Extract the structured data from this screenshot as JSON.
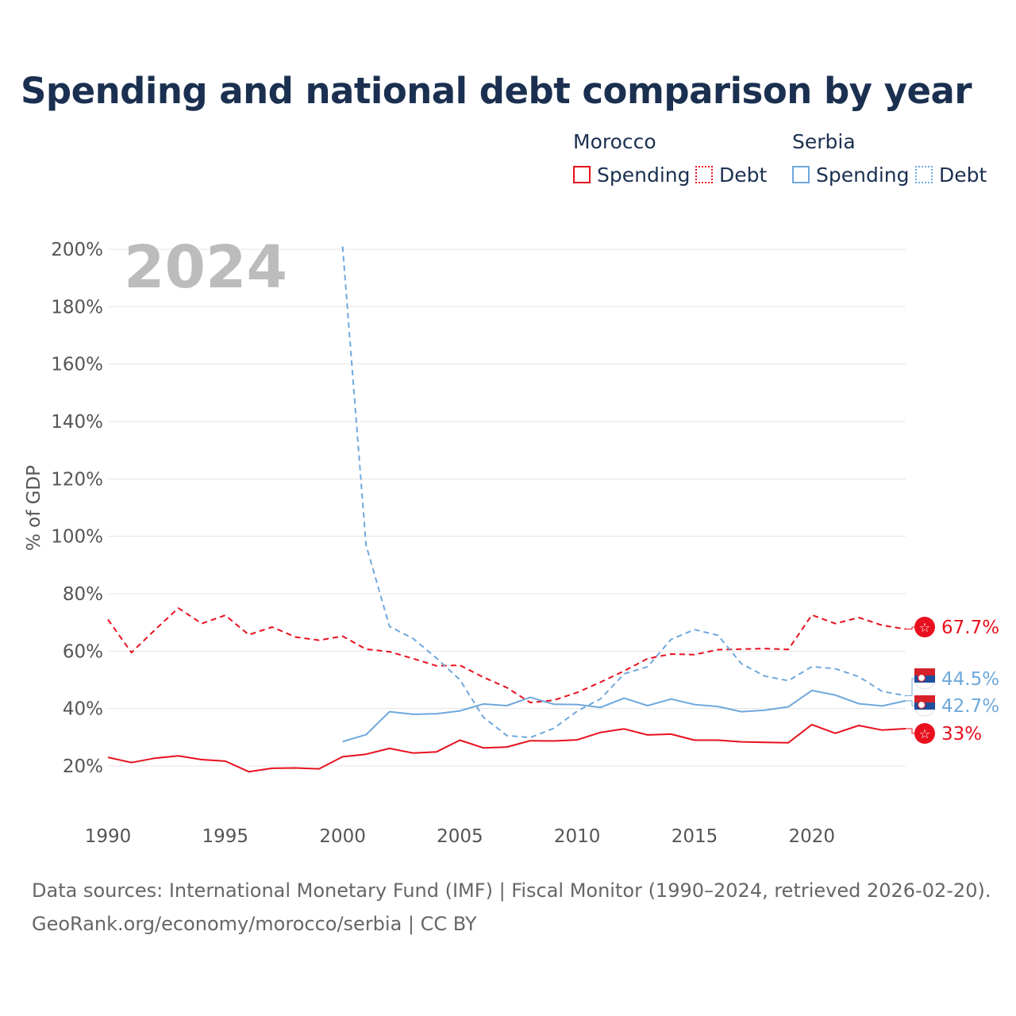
{
  "title": "Spending and national debt comparison by year",
  "year_label": "2024",
  "legend": {
    "groups": [
      {
        "name": "Morocco",
        "color": "#e8101e",
        "items": [
          "Spending",
          "Debt"
        ]
      },
      {
        "name": "Serbia",
        "color": "#6fa8dc",
        "items": [
          "Spending",
          "Debt"
        ]
      }
    ]
  },
  "footer": {
    "line1": "Data sources: International Monetary Fund (IMF) | Fiscal Monitor (1990–2024, retrieved 2026-02-20).",
    "line2": "GeoRank.org/economy/morocco/serbia | CC BY"
  },
  "chart_data": {
    "type": "line",
    "ylabel": "% of GDP",
    "xlabel": "",
    "ylim": [
      10,
      205
    ],
    "xlim": [
      1990,
      2024
    ],
    "yticks": [
      20,
      40,
      60,
      80,
      100,
      120,
      140,
      160,
      180,
      200
    ],
    "ytick_labels": [
      "20%",
      "40%",
      "60%",
      "80%",
      "100%",
      "120%",
      "140%",
      "160%",
      "180%",
      "200%"
    ],
    "xticks": [
      1990,
      1995,
      2000,
      2005,
      2010,
      2015,
      2020
    ],
    "xtick_labels": [
      "1990",
      "1995",
      "2000",
      "2005",
      "2010",
      "2015",
      "2020"
    ],
    "grid": true,
    "series": [
      {
        "name": "Morocco Spending",
        "country": "Morocco",
        "metric": "Spending",
        "color": "#e8101e",
        "style": "solid",
        "x": [
          1990,
          1991,
          1992,
          1993,
          1994,
          1995,
          1996,
          1997,
          1998,
          1999,
          2000,
          2001,
          2002,
          2003,
          2004,
          2005,
          2006,
          2007,
          2008,
          2009,
          2010,
          2011,
          2012,
          2013,
          2014,
          2015,
          2016,
          2017,
          2018,
          2019,
          2020,
          2021,
          2022,
          2023,
          2024
        ],
        "values": [
          23,
          21.2,
          22.7,
          23.5,
          22.2,
          21.7,
          18,
          19.2,
          19.3,
          19,
          23.2,
          24.1,
          26.1,
          24.5,
          24.9,
          29,
          26.3,
          26.6,
          28.8,
          28.7,
          29.1,
          31.7,
          32.9,
          30.8,
          31.1,
          29,
          29,
          28.4,
          28.2,
          28.1,
          34.4,
          31.4,
          34.1,
          32.5,
          33.0
        ],
        "end_label": "33%"
      },
      {
        "name": "Morocco Debt",
        "country": "Morocco",
        "metric": "Debt",
        "color": "#e8101e",
        "style": "dashed",
        "x": [
          1990,
          1991,
          1992,
          1993,
          1994,
          1995,
          1996,
          1997,
          1998,
          1999,
          2000,
          2001,
          2002,
          2003,
          2004,
          2005,
          2006,
          2007,
          2008,
          2009,
          2010,
          2011,
          2012,
          2013,
          2014,
          2015,
          2016,
          2017,
          2018,
          2019,
          2020,
          2021,
          2022,
          2023,
          2024
        ],
        "values": [
          71,
          59.5,
          67.4,
          75,
          69.6,
          72.5,
          65.7,
          68.4,
          64.9,
          63.8,
          65.2,
          60.7,
          59.8,
          57.4,
          54.9,
          55.1,
          50.9,
          47.3,
          42.1,
          42.9,
          45.6,
          49.2,
          53.1,
          57.4,
          59,
          58.8,
          60.5,
          60.7,
          60.9,
          60.6,
          72.6,
          69.6,
          71.7,
          69,
          67.7
        ],
        "end_label": "67.7%"
      },
      {
        "name": "Serbia Spending",
        "country": "Serbia",
        "metric": "Spending",
        "color": "#6fa8dc",
        "style": "solid",
        "x": [
          2000,
          2001,
          2002,
          2003,
          2004,
          2005,
          2006,
          2007,
          2008,
          2009,
          2010,
          2011,
          2012,
          2013,
          2014,
          2015,
          2016,
          2017,
          2018,
          2019,
          2020,
          2021,
          2022,
          2023,
          2024
        ],
        "values": [
          28.5,
          30.9,
          38.9,
          38,
          38.2,
          39.2,
          41.6,
          41,
          43.9,
          41.5,
          41.4,
          40.4,
          43.6,
          41,
          43.3,
          41.4,
          40.7,
          38.9,
          39.4,
          40.6,
          46.3,
          44.7,
          41.7,
          40.9,
          42.7
        ],
        "end_label": "42.7%"
      },
      {
        "name": "Serbia Debt",
        "country": "Serbia",
        "metric": "Debt",
        "color": "#6fa8dc",
        "style": "dashed",
        "x": [
          2000,
          2001,
          2002,
          2003,
          2004,
          2005,
          2006,
          2007,
          2008,
          2009,
          2010,
          2011,
          2012,
          2013,
          2014,
          2015,
          2016,
          2017,
          2018,
          2019,
          2020,
          2021,
          2022,
          2023,
          2024
        ],
        "values": [
          201,
          97,
          68.6,
          64.4,
          57.6,
          50,
          37,
          30.6,
          29.9,
          33.1,
          39.1,
          43.4,
          52.1,
          54.6,
          64.1,
          67.5,
          65.5,
          55.6,
          51.3,
          49.7,
          54.6,
          53.9,
          51.1,
          46,
          44.5
        ],
        "end_label": "44.5%"
      }
    ]
  }
}
